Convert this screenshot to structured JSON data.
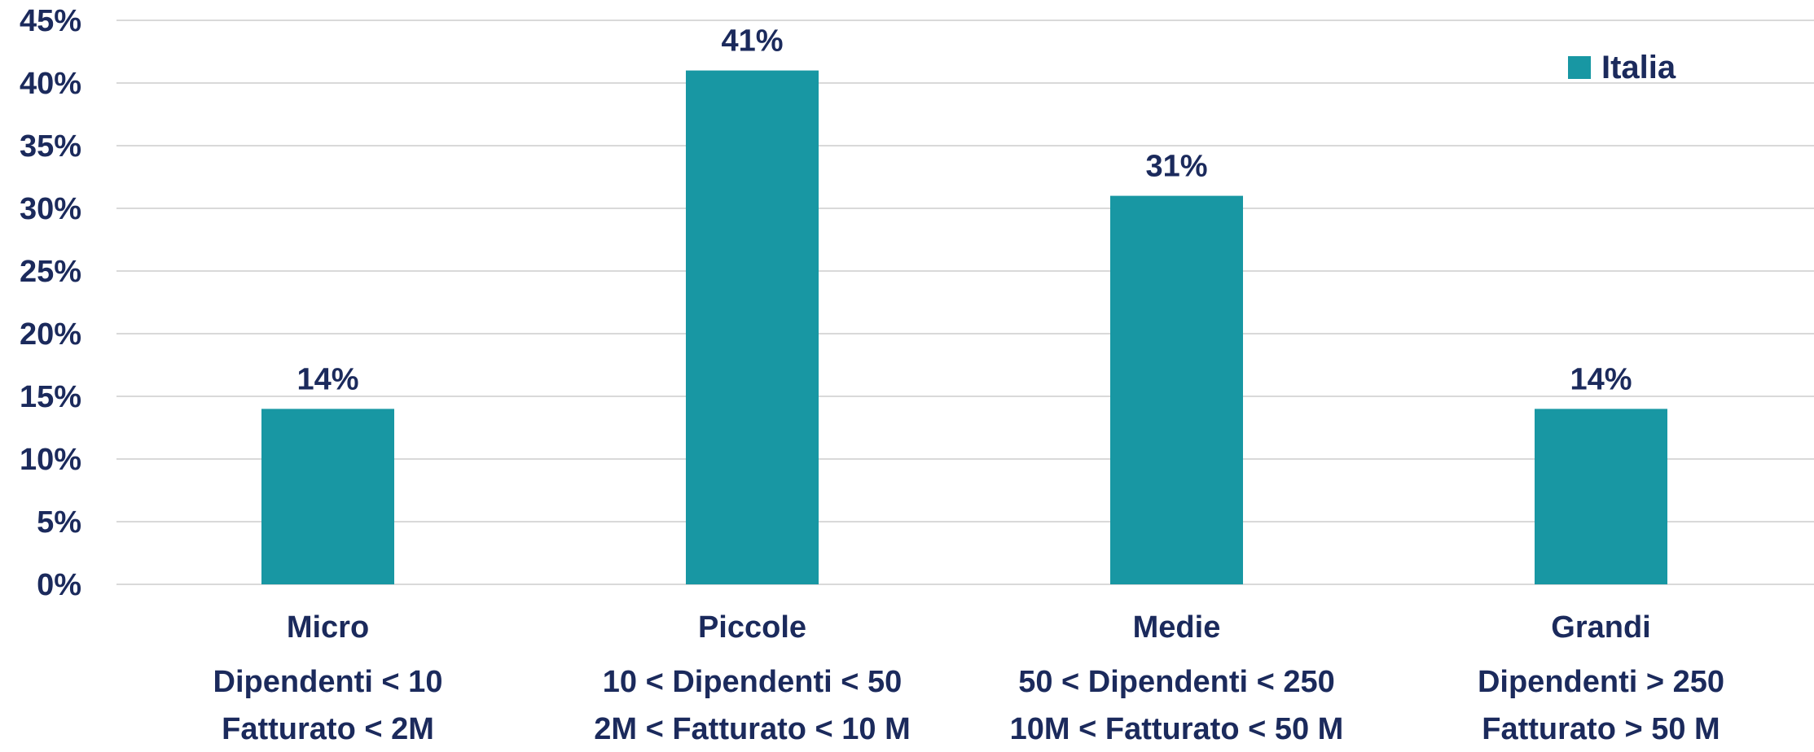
{
  "chart_data": {
    "type": "bar",
    "categories": [
      [
        "Micro",
        "Dipendenti < 10",
        "Fatturato < 2M"
      ],
      [
        "Piccole",
        "10 < Dipendenti < 50",
        "2M < Fatturato < 10 M"
      ],
      [
        "Medie",
        "50 < Dipendenti < 250",
        "10M < Fatturato < 50 M"
      ],
      [
        "Grandi",
        "Dipendenti > 250",
        "Fatturato > 50 M"
      ]
    ],
    "series": [
      {
        "name": "Italia",
        "values": [
          14,
          41,
          31,
          14
        ],
        "data_labels": [
          "14%",
          "41%",
          "31%",
          "14%"
        ],
        "color": "#1897a3"
      }
    ],
    "ylim": [
      0,
      45
    ],
    "yticks": [
      "0%",
      "5%",
      "10%",
      "15%",
      "20%",
      "25%",
      "30%",
      "35%",
      "40%",
      "45%"
    ],
    "grid": true,
    "legend": "top-right",
    "colors": {
      "text": "#1b2a5c",
      "grid": "#d9d9d9"
    }
  }
}
